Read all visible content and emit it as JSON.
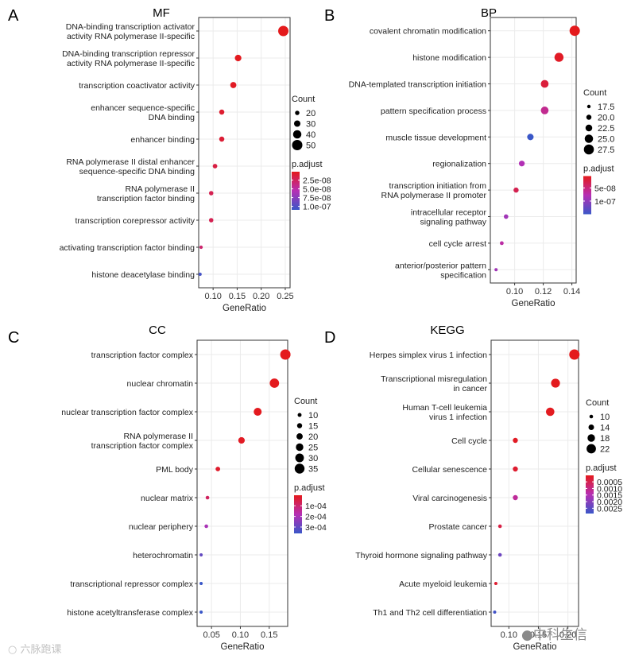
{
  "chart_data": [
    {
      "panel": "A",
      "type": "scatter",
      "title": "MF",
      "xlabel": "GeneRatio",
      "ylabel": "",
      "xlim": [
        0.07,
        0.26
      ],
      "xticks": [
        0.1,
        0.15,
        0.2,
        0.25
      ],
      "xtick_labels": [
        "0.10",
        "0.15",
        "0.20",
        "0.25"
      ],
      "grid": true,
      "categories": [
        "DNA-binding transcription activator\nactivity RNA polymerase II-specific",
        "DNA-binding transcription repressor\nactivity RNA polymerase II-specific",
        "transcription coactivator activity",
        "enhancer sequence-specific\nDNA binding",
        "enhancer binding",
        "RNA polymerase II distal enhancer\nsequence-specific DNA binding",
        "RNA polymerase II\ntranscription factor binding",
        "transcription corepressor activity",
        "activating transcription factor binding",
        "histone deacetylase binding"
      ],
      "gene_ratio": [
        0.246,
        0.152,
        0.142,
        0.118,
        0.118,
        0.104,
        0.096,
        0.096,
        0.075,
        0.073
      ],
      "count": [
        50,
        31,
        29,
        24,
        24,
        21,
        20,
        20,
        15,
        14
      ],
      "p_adjust": [
        1e-09,
        2e-09,
        4e-09,
        8e-09,
        1e-08,
        1.5e-08,
        2e-08,
        2e-08,
        3e-08,
        1.05e-07
      ],
      "legend": {
        "count_title": "Count",
        "count_values": [
          20,
          30,
          40,
          50
        ],
        "count_labels": [
          "20",
          "30",
          "40",
          "50"
        ],
        "color_title": "p.adjust",
        "color_range": [
          1e-09,
          1.1e-07
        ],
        "color_ticks": [
          2.5e-08,
          5e-08,
          7.5e-08,
          1e-07
        ],
        "color_tick_labels": [
          "2.5e-08",
          "5.0e-08",
          "7.5e-08",
          "1.0e-07"
        ]
      }
    },
    {
      "panel": "B",
      "type": "scatter",
      "title": "BP",
      "xlabel": "GeneRatio",
      "ylabel": "",
      "xlim": [
        0.083,
        0.143
      ],
      "xticks": [
        0.1,
        0.12,
        0.14
      ],
      "xtick_labels": [
        "0.10",
        "0.12",
        "0.14"
      ],
      "grid": true,
      "categories": [
        "covalent chromatin modification",
        "histone modification",
        "DNA-templated transcription initiation",
        "pattern specification process",
        "muscle tissue development",
        "regionalization",
        "transcription initiation from\nRNA polymerase II promoter",
        "intracellular receptor\nsignaling pathway",
        "cell cycle arrest",
        "anterior/posterior pattern\nspecification"
      ],
      "gene_ratio": [
        0.142,
        0.131,
        0.121,
        0.121,
        0.111,
        0.105,
        0.101,
        0.094,
        0.091,
        0.087
      ],
      "count": [
        28,
        26,
        24,
        24,
        22,
        21,
        20,
        19,
        18,
        17
      ],
      "p_adjust": [
        5e-09,
        1e-08,
        2e-08,
        6e-08,
        1.5e-07,
        8e-08,
        3e-08,
        9e-08,
        7e-08,
        9e-08
      ],
      "legend": {
        "count_title": "Count",
        "count_values": [
          17.5,
          20.0,
          22.5,
          25.0,
          27.5
        ],
        "count_labels": [
          "17.5",
          "20.0",
          "22.5",
          "25.0",
          "27.5"
        ],
        "color_title": "p.adjust",
        "color_range": [
          5e-09,
          1.5e-07
        ],
        "color_ticks": [
          5e-08,
          1e-07
        ],
        "color_tick_labels": [
          "5e-08",
          "1e-07"
        ]
      }
    },
    {
      "panel": "C",
      "type": "scatter",
      "title": "CC",
      "xlabel": "GeneRatio",
      "ylabel": "",
      "xlim": [
        0.025,
        0.182
      ],
      "xticks": [
        0.05,
        0.1,
        0.15
      ],
      "xtick_labels": [
        "0.05",
        "0.10",
        "0.15"
      ],
      "grid": true,
      "categories": [
        "transcription factor complex",
        "nuclear chromatin",
        "nuclear transcription factor complex",
        "RNA polymerase II\ntranscription factor complex",
        "PML body",
        "nuclear matrix",
        "nuclear periphery",
        "heterochromatin",
        "transcriptional repressor complex",
        "histone acetyltransferase complex"
      ],
      "gene_ratio": [
        0.178,
        0.159,
        0.13,
        0.102,
        0.061,
        0.043,
        0.041,
        0.032,
        0.032,
        0.032
      ],
      "count": [
        37,
        33,
        27,
        21,
        13,
        9,
        9,
        7,
        7,
        7
      ],
      "p_adjust": [
        2e-06,
        3e-06,
        5e-06,
        1e-05,
        2e-05,
        8e-05,
        0.0002,
        0.0003,
        0.00036,
        0.00036
      ],
      "legend": {
        "count_title": "Count",
        "count_values": [
          10,
          15,
          20,
          25,
          30,
          35
        ],
        "count_labels": [
          "10",
          "15",
          "20",
          "25",
          "30",
          "35"
        ],
        "color_title": "p.adjust",
        "color_range": [
          1e-06,
          0.00036
        ],
        "color_ticks": [
          0.0001,
          0.0002,
          0.0003
        ],
        "color_tick_labels": [
          "1e-04",
          "2e-04",
          "3e-04"
        ]
      }
    },
    {
      "panel": "D",
      "type": "scatter",
      "title": "KEGG",
      "xlabel": "GeneRatio",
      "ylabel": "",
      "xlim": [
        0.07,
        0.218
      ],
      "xticks": [
        0.1,
        0.15,
        0.2
      ],
      "xtick_labels": [
        "0.10",
        "0.15",
        "0.20"
      ],
      "grid": true,
      "categories": [
        "Herpes simplex virus 1 infection",
        "Transcriptional misregulation\nin cancer",
        "Human T-cell leukemia\nvirus 1 infection",
        "Cell cycle",
        "Cellular senescence",
        "Viral carcinogenesis",
        "Prostate cancer",
        "Thyroid hormone signaling pathway",
        "Acute myeloid leukemia",
        "Th1 and Th2 cell differentiation"
      ],
      "gene_ratio": [
        0.211,
        0.179,
        0.17,
        0.111,
        0.111,
        0.111,
        0.085,
        0.085,
        0.078,
        0.076
      ],
      "count": [
        24,
        21,
        20,
        13,
        13,
        13,
        10,
        10,
        9,
        9
      ],
      "p_adjust": [
        1e-05,
        3e-05,
        5e-05,
        0.0001,
        0.0002,
        0.0012,
        0.0004,
        0.0023,
        0.0002,
        0.0028
      ],
      "legend": {
        "count_title": "Count",
        "count_values": [
          10,
          14,
          18,
          22
        ],
        "count_labels": [
          "10",
          "14",
          "18",
          "22"
        ],
        "color_title": "p.adjust",
        "color_range": [
          1e-05,
          0.0029
        ],
        "color_ticks": [
          0.0005,
          0.001,
          0.0015,
          0.002,
          0.0025
        ],
        "color_tick_labels": [
          "0.0005",
          "0.0010",
          "0.0015",
          "0.0020",
          "0.0025"
        ]
      }
    }
  ],
  "colors": {
    "low": "#e41a1c",
    "mid": "#b62fb4",
    "high": "#3a57c8",
    "grid": "#ebebeb",
    "dot_mid": "#a52a6e"
  },
  "watermarks": {
    "bottom_left": "六脉跑课",
    "bottom_right": "中科生信"
  }
}
